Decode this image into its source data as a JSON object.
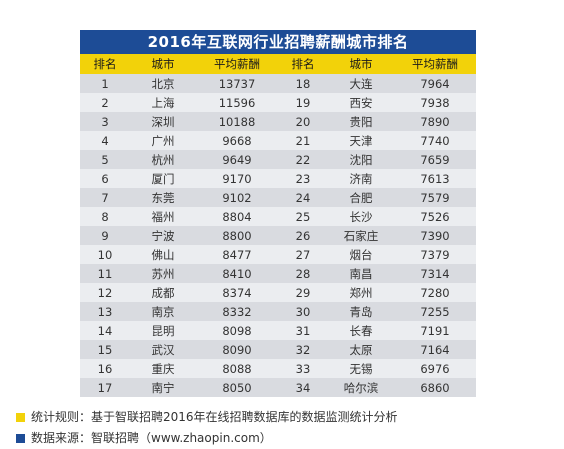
{
  "chart_data": {
    "type": "table",
    "title": "2016年互联网行业招聘薪酬城市排名",
    "columns": [
      "排名",
      "城市",
      "平均薪酬",
      "排名",
      "城市",
      "平均薪酬"
    ],
    "rows": [
      [
        "1",
        "北京",
        "13737",
        "18",
        "大连",
        "7964"
      ],
      [
        "2",
        "上海",
        "11596",
        "19",
        "西安",
        "7938"
      ],
      [
        "3",
        "深圳",
        "10188",
        "20",
        "贵阳",
        "7890"
      ],
      [
        "4",
        "广州",
        "9668",
        "21",
        "天津",
        "7740"
      ],
      [
        "5",
        "杭州",
        "9649",
        "22",
        "沈阳",
        "7659"
      ],
      [
        "6",
        "厦门",
        "9170",
        "23",
        "济南",
        "7613"
      ],
      [
        "7",
        "东莞",
        "9102",
        "24",
        "合肥",
        "7579"
      ],
      [
        "8",
        "福州",
        "8804",
        "25",
        "长沙",
        "7526"
      ],
      [
        "9",
        "宁波",
        "8800",
        "26",
        "石家庄",
        "7390"
      ],
      [
        "10",
        "佛山",
        "8477",
        "27",
        "烟台",
        "7379"
      ],
      [
        "11",
        "苏州",
        "8410",
        "28",
        "南昌",
        "7314"
      ],
      [
        "12",
        "成都",
        "8374",
        "29",
        "郑州",
        "7280"
      ],
      [
        "13",
        "南京",
        "8332",
        "30",
        "青岛",
        "7255"
      ],
      [
        "14",
        "昆明",
        "8098",
        "31",
        "长春",
        "7191"
      ],
      [
        "15",
        "武汉",
        "8090",
        "32",
        "太原",
        "7164"
      ],
      [
        "16",
        "重庆",
        "8088",
        "33",
        "无锡",
        "6976"
      ],
      [
        "17",
        "南宁",
        "8050",
        "34",
        "哈尔滨",
        "6860"
      ]
    ]
  },
  "notes": {
    "rule": "统计规则：基于智联招聘2016年在线招聘数据库的数据监测统计分析",
    "source": "数据来源：智联招聘（www.zhaopin.com）"
  },
  "colors": {
    "title_bg": "#1d4c96",
    "header_bg": "#f2d20a",
    "row_odd": "#d9dbe0",
    "row_even": "#ebedf0",
    "note_rule_marker": "#f2d20a",
    "note_source_marker": "#1d4c96"
  }
}
